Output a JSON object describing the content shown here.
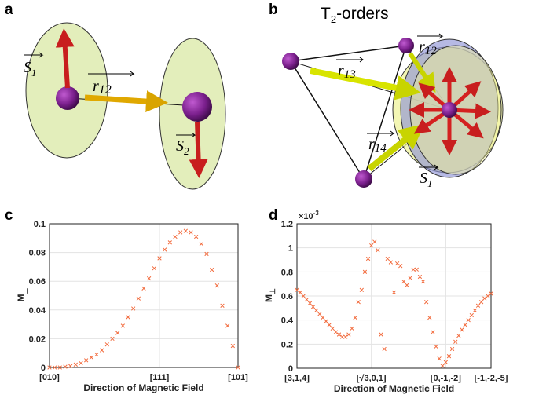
{
  "panels": {
    "a": "a",
    "b": "b",
    "c": "c",
    "d": "d"
  },
  "diagram_a": {
    "S1": {
      "symbol": "S",
      "sub": "1"
    },
    "r12": {
      "symbol": "r",
      "sub": "12"
    },
    "S2": {
      "symbol": "S",
      "sub": "2"
    }
  },
  "diagram_b": {
    "title": {
      "main": "T",
      "sub": "2",
      "rest": "-orders"
    },
    "r12": {
      "symbol": "r",
      "sub": "12"
    },
    "r13": {
      "symbol": "r",
      "sub": "13"
    },
    "r14": {
      "symbol": "r",
      "sub": "14"
    },
    "S1": {
      "symbol": "S",
      "sub": "1"
    }
  },
  "chart_data": [
    {
      "type": "scatter",
      "xlabel": "Direction of Magnetic Field",
      "ylabel": "M",
      "ylabel_sub": "⊥",
      "color": "#f26a3c",
      "grid": true,
      "xlim": [
        0,
        36
      ],
      "xticks": [
        {
          "value": 0,
          "label": "[010]"
        },
        {
          "value": 21,
          "label": "[111]"
        },
        {
          "value": 36,
          "label": "[101]"
        }
      ],
      "ylim": [
        0,
        0.1
      ],
      "yticks": [
        0,
        0.02,
        0.04,
        0.06,
        0.08,
        0.1
      ],
      "x": [
        0,
        1,
        2,
        3,
        4,
        5,
        6,
        7,
        8,
        9,
        10,
        11,
        12,
        13,
        14,
        15,
        16,
        17,
        18,
        19,
        20,
        21,
        22,
        23,
        24,
        25,
        26,
        27,
        28,
        29,
        30,
        31,
        32,
        33,
        34,
        35,
        36
      ],
      "values": [
        0,
        0,
        0,
        0.0005,
        0.001,
        0.002,
        0.003,
        0.005,
        0.007,
        0.009,
        0.012,
        0.016,
        0.02,
        0.024,
        0.029,
        0.035,
        0.041,
        0.048,
        0.055,
        0.062,
        0.069,
        0.076,
        0.082,
        0.087,
        0.091,
        0.094,
        0.095,
        0.094,
        0.091,
        0.086,
        0.079,
        0.068,
        0.057,
        0.043,
        0.029,
        0.015,
        0
      ]
    },
    {
      "type": "scatter",
      "xlabel": "Direction of Magnetic Field",
      "ylabel": "M",
      "ylabel_sub": "⊥",
      "y_exponent": {
        "base": "×10",
        "power": "-3"
      },
      "color": "#f26a3c",
      "grid": true,
      "xlim": [
        0,
        60
      ],
      "xticks": [
        {
          "value": 0,
          "label": "[3,1,4]"
        },
        {
          "value": 23,
          "label": "[√3,0,1]"
        },
        {
          "value": 46,
          "label": "[0,-1,-2]"
        },
        {
          "value": 60,
          "label": "[-1,-2,-5]"
        }
      ],
      "ylim": [
        0,
        1.2
      ],
      "yticks": [
        0,
        0.2,
        0.4,
        0.6,
        0.8,
        1,
        1.2
      ],
      "x": [
        0,
        1,
        2,
        3,
        4,
        5,
        6,
        7,
        8,
        9,
        10,
        11,
        12,
        13,
        14,
        15,
        16,
        17,
        18,
        19,
        20,
        21,
        22,
        23,
        24,
        25,
        26,
        27,
        28,
        29,
        30,
        31,
        32,
        33,
        34,
        35,
        36,
        37,
        38,
        39,
        40,
        41,
        42,
        43,
        44,
        45,
        46,
        47,
        48,
        49,
        50,
        51,
        52,
        53,
        54,
        55,
        56,
        57,
        58,
        59,
        60
      ],
      "values": [
        0.65,
        0.63,
        0.6,
        0.57,
        0.54,
        0.51,
        0.48,
        0.45,
        0.42,
        0.39,
        0.36,
        0.33,
        0.3,
        0.28,
        0.26,
        0.26,
        0.28,
        0.33,
        0.42,
        0.55,
        0.65,
        0.8,
        0.91,
        1.02,
        1.05,
        0.98,
        0.28,
        0.16,
        0.91,
        0.88,
        0.63,
        0.87,
        0.85,
        0.72,
        0.69,
        0.75,
        0.82,
        0.82,
        0.76,
        0.72,
        0.55,
        0.42,
        0.3,
        0.18,
        0.08,
        0.02,
        0.05,
        0.1,
        0.16,
        0.22,
        0.27,
        0.32,
        0.36,
        0.4,
        0.44,
        0.48,
        0.52,
        0.55,
        0.58,
        0.6,
        0.62
      ]
    }
  ]
}
